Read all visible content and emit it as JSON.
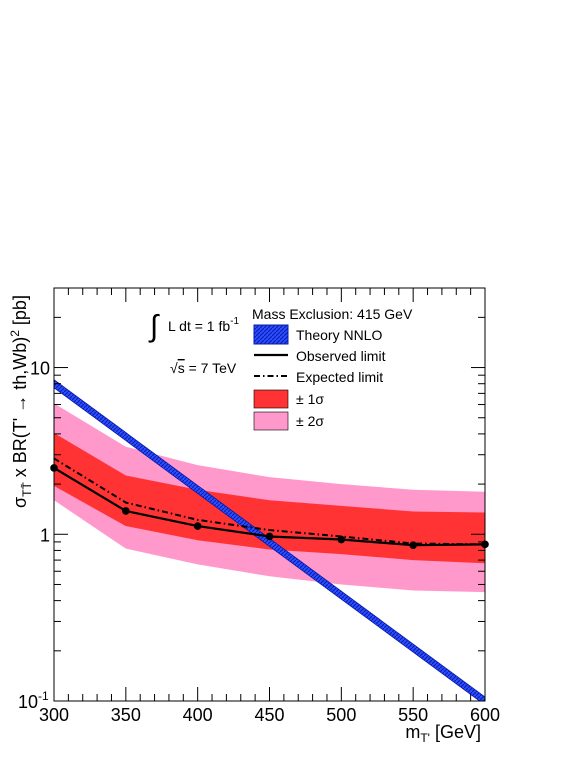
{
  "chart_data": {
    "type": "line",
    "x": [
      300,
      350,
      400,
      450,
      500,
      550,
      600
    ],
    "xlim": [
      300,
      600
    ],
    "ylim": [
      0.1,
      30
    ],
    "y_scale": "log",
    "x_ticks": [
      300,
      350,
      400,
      450,
      500,
      550,
      600
    ],
    "y_ticks": [
      {
        "value": 10,
        "label": "10"
      },
      {
        "value": 1,
        "label": "1"
      },
      {
        "value": 0.1,
        "label": "10",
        "sup": "-1"
      }
    ],
    "xlabel": {
      "main": "m",
      "sub": "T'",
      "unit": " [GeV]"
    },
    "ylabel": {
      "sigma": "σ",
      "sub": "TT̄",
      "text": " x BR(T' → th,Wb)",
      "sup": "2",
      "unit": " [pb]"
    },
    "series": [
      {
        "name": "Theory NNLO",
        "style": "hatched-band",
        "color": "#1a3cff",
        "x": [
          300,
          600
        ],
        "values": [
          8.0,
          0.1
        ]
      },
      {
        "name": "Observed limit",
        "style": "solid",
        "color": "#000000",
        "values": [
          2.5,
          1.38,
          1.12,
          0.97,
          0.93,
          0.86,
          0.87
        ]
      },
      {
        "name": "Expected limit",
        "style": "dash-dot",
        "color": "#000000",
        "values": [
          2.85,
          1.55,
          1.22,
          1.06,
          0.97,
          0.88,
          0.87
        ]
      },
      {
        "name": "± 1σ",
        "style": "band",
        "color": "#ff3333",
        "lower": [
          1.95,
          1.12,
          0.92,
          0.81,
          0.76,
          0.7,
          0.67
        ],
        "upper": [
          4.05,
          2.25,
          1.85,
          1.6,
          1.48,
          1.37,
          1.35
        ]
      },
      {
        "name": "± 2σ",
        "style": "band",
        "color": "#ff99cc",
        "lower": [
          1.6,
          0.82,
          0.66,
          0.56,
          0.5,
          0.46,
          0.45
        ],
        "upper": [
          6.1,
          3.35,
          2.6,
          2.2,
          2.0,
          1.85,
          1.8
        ]
      }
    ],
    "legend_title": "Mass Exclusion: 415 GeV",
    "legend_position": "top-right",
    "annotations": {
      "lumi": {
        "integral": "∫",
        "text": " L dt = 1 fb",
        "sup": "-1"
      },
      "energy": {
        "radical": "√",
        "s": "s",
        "text": " = 7 TeV"
      }
    },
    "grid": false
  }
}
